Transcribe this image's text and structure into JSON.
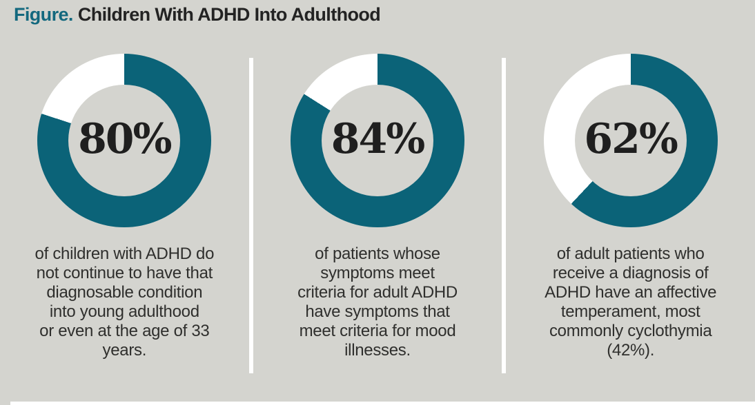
{
  "title": {
    "prefix": "Figure.",
    "text": "Children With ADHD Into Adulthood"
  },
  "colors": {
    "background": "#d4d4cf",
    "accent_teal": "#0b6378",
    "title_teal": "#13687e",
    "remainder_white": "#ffffff",
    "number_black": "#1f1f1f",
    "caption_gray": "#2f2f2d"
  },
  "panels": [
    {
      "value": 80,
      "label": "80%",
      "caption": "of children with ADHD do\nnot continue to have that\ndiagnosable condition\ninto young adulthood\nor even at the age of 33\nyears."
    },
    {
      "value": 84,
      "label": "84%",
      "caption": "of patients whose\nsymptoms meet\ncriteria for adult ADHD\nhave symptoms that\nmeet criteria for mood\nillnesses."
    },
    {
      "value": 62,
      "label": "62%",
      "caption": "of adult patients who\nreceive a diagnosis of\nADHD have an affective\ntemperament, most\ncommonly cyclothymia\n(42%)."
    }
  ],
  "chart_data": [
    {
      "type": "pie",
      "subtype": "donut",
      "title": "Children With ADHD Into Adulthood - panel 1",
      "labels": [
        "highlighted",
        "remainder"
      ],
      "values": [
        80,
        20
      ],
      "center_label": "80%",
      "colors": [
        "#0b6378",
        "#ffffff"
      ],
      "start_angle_deg": 0,
      "direction": "clockwise",
      "annotation": "of children with ADHD do not continue to have that diagnosable condition into young adulthood or even at the age of 33 years."
    },
    {
      "type": "pie",
      "subtype": "donut",
      "title": "Children With ADHD Into Adulthood - panel 2",
      "labels": [
        "highlighted",
        "remainder"
      ],
      "values": [
        84,
        16
      ],
      "center_label": "84%",
      "colors": [
        "#0b6378",
        "#ffffff"
      ],
      "start_angle_deg": 0,
      "direction": "clockwise",
      "annotation": "of patients whose symptoms meet criteria for adult ADHD have symptoms that meet criteria for mood illnesses."
    },
    {
      "type": "pie",
      "subtype": "donut",
      "title": "Children With ADHD Into Adulthood - panel 3",
      "labels": [
        "highlighted",
        "remainder"
      ],
      "values": [
        62,
        38
      ],
      "center_label": "62%",
      "colors": [
        "#0b6378",
        "#ffffff"
      ],
      "start_angle_deg": 0,
      "direction": "clockwise",
      "annotation": "of adult patients who receive a diagnosis of ADHD have an affective temperament, most commonly cyclothymia (42%)."
    }
  ]
}
